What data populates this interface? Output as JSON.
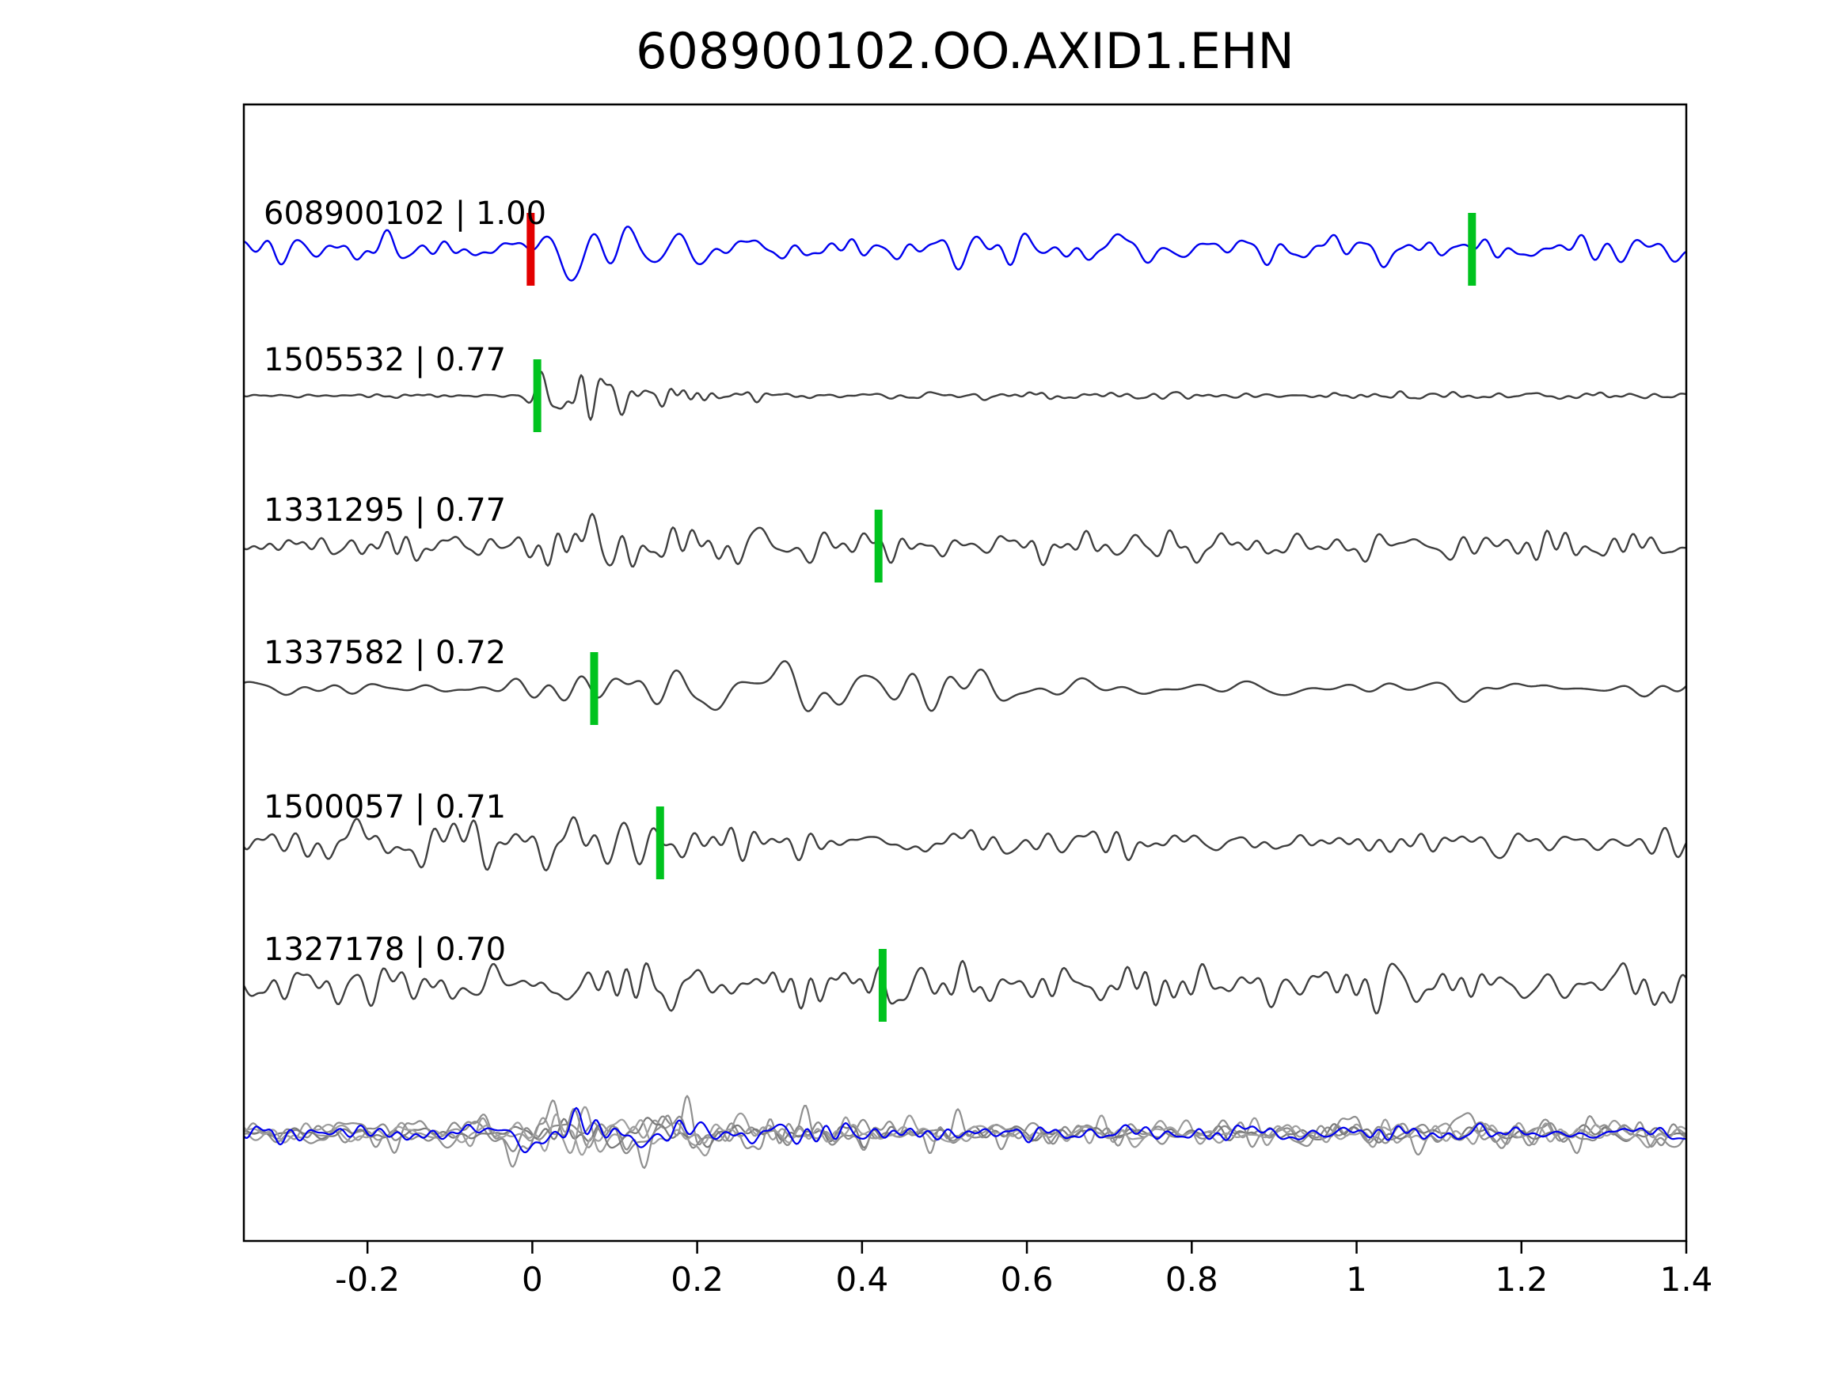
{
  "chart_data": {
    "type": "line",
    "title": "608900102.OO.AXID1.EHN",
    "xlabel": "",
    "ylabel": "",
    "xlim": [
      -0.35,
      1.4
    ],
    "x_ticks": [
      -0.2,
      0,
      0.2,
      0.4,
      0.6,
      0.8,
      1,
      1.2,
      1.4
    ],
    "x_tick_labels": [
      "-0.2",
      "0",
      "0.2",
      "0.4",
      "0.6",
      "0.8",
      "1",
      "1.2",
      "1.4"
    ],
    "grid": false,
    "legend": "none",
    "colors": {
      "template_trace": "#0000ee",
      "detection_trace": "#3f3f3f",
      "pick_green": "#00c31e",
      "pick_red": "#e30000",
      "axis": "#000000"
    },
    "series": [
      {
        "id": "608900102",
        "correlation": "1.00",
        "label": "608900102 | 1.00",
        "role": "template",
        "color": "#0000ee",
        "picks": [
          {
            "x": -0.002,
            "color": "#e30000",
            "kind": "template-pick"
          },
          {
            "x": 1.14,
            "color": "#00c31e",
            "kind": "detection-pick"
          }
        ],
        "envelope": [
          [
            -0.35,
            16
          ],
          [
            -0.05,
            15
          ],
          [
            0.0,
            22
          ],
          [
            0.025,
            55
          ],
          [
            0.06,
            48
          ],
          [
            0.12,
            26
          ],
          [
            0.25,
            20
          ],
          [
            0.4,
            22
          ],
          [
            0.55,
            26
          ],
          [
            0.7,
            20
          ],
          [
            0.85,
            18
          ],
          [
            1.0,
            20
          ],
          [
            1.15,
            24
          ],
          [
            1.3,
            22
          ],
          [
            1.4,
            16
          ]
        ],
        "freq_range": [
          6,
          45
        ],
        "seed": 101
      },
      {
        "id": "1505532",
        "correlation": "0.77",
        "label": "1505532 | 0.77",
        "role": "detection",
        "color": "#3f3f3f",
        "picks": [
          {
            "x": 0.006,
            "color": "#00c31e",
            "kind": "detection-pick"
          }
        ],
        "envelope": [
          [
            -0.35,
            2.5
          ],
          [
            -0.02,
            2.5
          ],
          [
            0.005,
            34
          ],
          [
            0.04,
            42
          ],
          [
            0.09,
            28
          ],
          [
            0.15,
            14
          ],
          [
            0.25,
            6
          ],
          [
            0.4,
            4
          ],
          [
            0.7,
            4.5
          ],
          [
            1.0,
            4
          ],
          [
            1.4,
            3.5
          ]
        ],
        "freq_range": [
          8,
          65
        ],
        "seed": 202
      },
      {
        "id": "1331295",
        "correlation": "0.77",
        "label": "1331295 | 0.77",
        "role": "detection",
        "color": "#3f3f3f",
        "picks": [
          {
            "x": 0.42,
            "color": "#00c31e",
            "kind": "detection-pick"
          }
        ],
        "envelope": [
          [
            -0.35,
            16
          ],
          [
            -0.1,
            17
          ],
          [
            0.0,
            18
          ],
          [
            0.05,
            40
          ],
          [
            0.12,
            42
          ],
          [
            0.22,
            24
          ],
          [
            0.35,
            28
          ],
          [
            0.5,
            26
          ],
          [
            0.65,
            22
          ],
          [
            0.8,
            20
          ],
          [
            1.0,
            20
          ],
          [
            1.2,
            22
          ],
          [
            1.4,
            20
          ]
        ],
        "freq_range": [
          6,
          50
        ],
        "seed": 303
      },
      {
        "id": "1337582",
        "correlation": "0.72",
        "label": "1337582 | 0.72",
        "role": "detection",
        "color": "#3f3f3f",
        "picks": [
          {
            "x": 0.075,
            "color": "#00c31e",
            "kind": "detection-pick"
          }
        ],
        "envelope": [
          [
            -0.35,
            9
          ],
          [
            -0.05,
            10
          ],
          [
            0.02,
            22
          ],
          [
            0.1,
            30
          ],
          [
            0.18,
            42
          ],
          [
            0.28,
            30
          ],
          [
            0.4,
            26
          ],
          [
            0.52,
            28
          ],
          [
            0.65,
            18
          ],
          [
            0.8,
            14
          ],
          [
            1.0,
            12
          ],
          [
            1.2,
            11
          ],
          [
            1.4,
            10
          ]
        ],
        "freq_range": [
          4,
          28
        ],
        "seed": 404
      },
      {
        "id": "1500057",
        "correlation": "0.71",
        "label": "1500057 | 0.71",
        "role": "detection",
        "color": "#3f3f3f",
        "picks": [
          {
            "x": 0.155,
            "color": "#00c31e",
            "kind": "detection-pick"
          }
        ],
        "envelope": [
          [
            -0.35,
            20
          ],
          [
            -0.2,
            24
          ],
          [
            -0.08,
            32
          ],
          [
            0.05,
            34
          ],
          [
            0.15,
            32
          ],
          [
            0.22,
            42
          ],
          [
            0.3,
            24
          ],
          [
            0.45,
            20
          ],
          [
            0.6,
            24
          ],
          [
            0.75,
            20
          ],
          [
            0.9,
            16
          ],
          [
            1.05,
            18
          ],
          [
            1.2,
            18
          ],
          [
            1.4,
            16
          ]
        ],
        "freq_range": [
          6,
          48
        ],
        "seed": 505
      },
      {
        "id": "1327178",
        "correlation": "0.70",
        "label": "1327178 | 0.70",
        "role": "detection",
        "color": "#3f3f3f",
        "picks": [
          {
            "x": 0.425,
            "color": "#00c31e",
            "kind": "detection-pick"
          }
        ],
        "envelope": [
          [
            -0.35,
            24
          ],
          [
            -0.15,
            26
          ],
          [
            0.0,
            28
          ],
          [
            0.15,
            30
          ],
          [
            0.3,
            26
          ],
          [
            0.45,
            26
          ],
          [
            0.6,
            28
          ],
          [
            0.75,
            24
          ],
          [
            0.9,
            26
          ],
          [
            1.05,
            28
          ],
          [
            1.2,
            30
          ],
          [
            1.4,
            24
          ]
        ],
        "freq_range": [
          6,
          50
        ],
        "seed": 606
      }
    ],
    "overlay": {
      "description": "all aligned traces superimposed",
      "envelope": [
        [
          -0.35,
          12
        ],
        [
          -0.05,
          13
        ],
        [
          0.02,
          30
        ],
        [
          0.08,
          24
        ],
        [
          0.18,
          18
        ],
        [
          0.35,
          15
        ],
        [
          0.6,
          13
        ],
        [
          0.9,
          13
        ],
        [
          1.2,
          13
        ],
        [
          1.4,
          12
        ]
      ],
      "freq_range": [
        6,
        52
      ],
      "members": [
        {
          "color": "#8a8a8a",
          "seed": 31,
          "scale": 1.0
        },
        {
          "color": "#9a9a9a",
          "seed": 32,
          "scale": 1.3
        },
        {
          "color": "#7a7a7a",
          "seed": 33,
          "scale": 0.8
        },
        {
          "color": "#8f8f8f",
          "seed": 34,
          "scale": 1.6
        },
        {
          "color": "#a0a0a0",
          "seed": 35,
          "scale": 1.0
        },
        {
          "color": "#0000ee",
          "seed": 36,
          "scale": 0.9
        }
      ]
    }
  }
}
